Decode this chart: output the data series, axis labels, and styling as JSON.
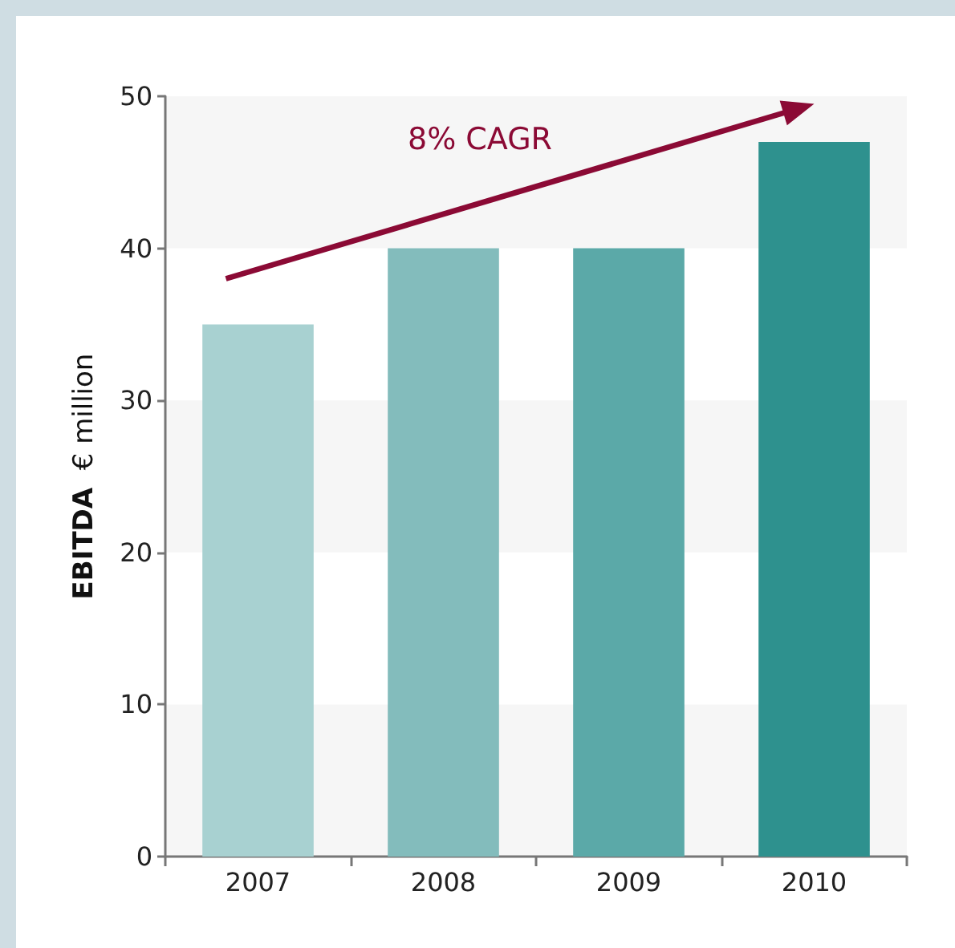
{
  "chart_data": {
    "type": "bar",
    "ylabel": "EBITDA € million",
    "categories": [
      "2007",
      "2008",
      "2009",
      "2010"
    ],
    "values": [
      35,
      40,
      40,
      47
    ],
    "colors": [
      "#a8d1d1",
      "#83bcbc",
      "#5ba9a8",
      "#2e918e"
    ],
    "ylim": [
      0,
      50
    ],
    "yticks": [
      0,
      10,
      20,
      30,
      40,
      50
    ],
    "bands": [
      {
        "axis": "y",
        "from": 0,
        "to": 10,
        "color": "#f6f6f6"
      },
      {
        "axis": "y",
        "from": 20,
        "to": 30,
        "color": "#f6f6f6"
      },
      {
        "axis": "y",
        "from": 40,
        "to": 50,
        "color": "#f6f6f6"
      }
    ],
    "annotations": [
      "8% CAGR"
    ]
  }
}
